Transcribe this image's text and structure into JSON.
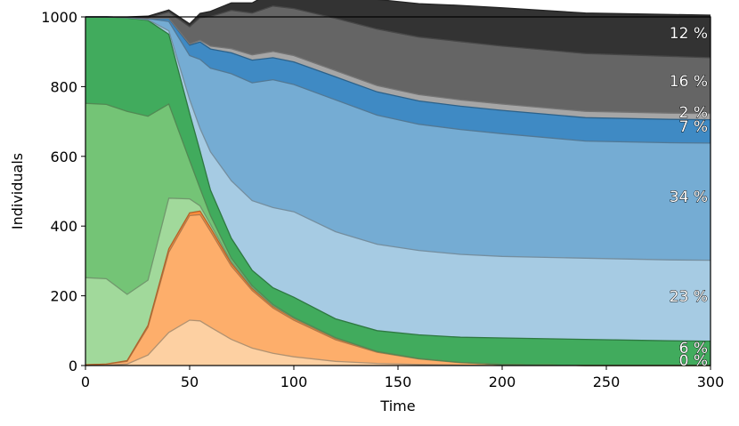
{
  "chart_data": {
    "type": "area",
    "title": "",
    "xlabel": "Time",
    "ylabel": "Individuals",
    "xlim": [
      0,
      300
    ],
    "ylim": [
      0,
      1000
    ],
    "xticks": [
      "0",
      "50",
      "100",
      "150",
      "200",
      "250",
      "300"
    ],
    "yticks": [
      "0",
      "200",
      "400",
      "600",
      "800",
      "1000"
    ],
    "grid": false,
    "x": [
      0,
      10,
      20,
      30,
      40,
      50,
      55,
      60,
      70,
      80,
      90,
      100,
      120,
      140,
      160,
      180,
      200,
      240,
      280,
      300
    ],
    "series": [
      {
        "color": "#fdd0a2",
        "values": [
          0,
          1,
          4,
          30,
          95,
          130,
          128,
          110,
          75,
          50,
          35,
          25,
          12,
          6,
          3,
          1,
          0,
          0,
          0,
          0
        ]
      },
      {
        "color": "#fdae6b",
        "values": [
          2,
          3,
          8,
          80,
          230,
          300,
          305,
          275,
          210,
          165,
          130,
          105,
          62,
          32,
          16,
          7,
          3,
          0,
          0,
          0
        ]
      },
      {
        "color": "#fd8d3c",
        "values": [
          0,
          0,
          2,
          5,
          10,
          8,
          10,
          10,
          8,
          6,
          5,
          5,
          4,
          2,
          1,
          1,
          0,
          0,
          0,
          0
        ]
      },
      {
        "color": "#a1d99b",
        "values": [
          250,
          245,
          190,
          130,
          145,
          40,
          15,
          10,
          5,
          3,
          2,
          1,
          1,
          0,
          0,
          0,
          0,
          0,
          0,
          0
        ]
      },
      {
        "color": "#74c476",
        "values": [
          500,
          500,
          525,
          470,
          270,
          110,
          50,
          25,
          10,
          5,
          3,
          2,
          1,
          0,
          0,
          0,
          0,
          0,
          0,
          0
        ]
      },
      {
        "color": "#41ab5d",
        "values": [
          248,
          251,
          268,
          275,
          200,
          135,
          107,
          73,
          57,
          44,
          48,
          58,
          54,
          60,
          68,
          72,
          76,
          75,
          71,
          70
        ]
      },
      {
        "color": "#a6cbe3",
        "values": [
          0,
          0,
          1,
          2,
          10,
          40,
          65,
          110,
          165,
          200,
          230,
          245,
          250,
          248,
          242,
          238,
          234,
          233,
          232,
          232
        ]
      },
      {
        "color": "#75acd3",
        "values": [
          0,
          0,
          1,
          3,
          27,
          126,
          198,
          240,
          307,
          338,
          367,
          365,
          378,
          370,
          362,
          358,
          352,
          336,
          336,
          336
        ]
      },
      {
        "color": "#3f8ac4",
        "values": [
          0,
          0,
          0,
          1,
          8,
          30,
          50,
          55,
          60,
          65,
          63,
          65,
          66,
          67,
          67,
          67,
          67,
          67,
          67,
          67
        ]
      },
      {
        "color": "#a6a6a6",
        "values": [
          0,
          0,
          0,
          0,
          1,
          3,
          5,
          8,
          12,
          15,
          18,
          18,
          18,
          18,
          18,
          18,
          18,
          18,
          18,
          18
        ]
      },
      {
        "color": "#656565",
        "values": [
          0,
          0,
          0,
          2,
          18,
          50,
          65,
          85,
          110,
          120,
          130,
          135,
          150,
          162,
          165,
          167,
          166,
          166,
          163,
          160
        ]
      },
      {
        "color": "#333333",
        "values": [
          0,
          0,
          1,
          4,
          6,
          8,
          12,
          15,
          21,
          29,
          41,
          52,
          74,
          85,
          96,
          104,
          110,
          116,
          120,
          122
        ]
      }
    ],
    "annotations": [
      "12 %",
      "16 %",
      "2 %",
      "7 %",
      "34 %",
      "23 %",
      "6 %",
      "0 %"
    ]
  }
}
